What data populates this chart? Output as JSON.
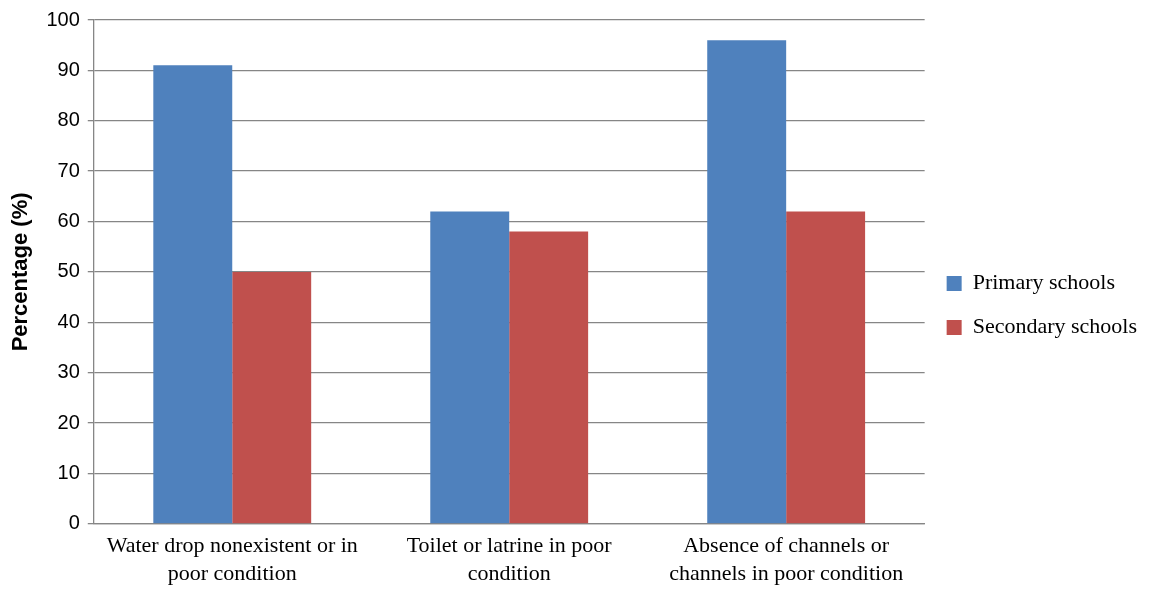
{
  "chart_data": {
    "type": "bar",
    "ylabel": "Percentage (%)",
    "categories": [
      "Water drop nonexistent or in poor condition",
      "Toilet or latrine in poor condition",
      "Absence of channels or channels in poor condition"
    ],
    "series": [
      {
        "name": "Primary schools",
        "color": "#4f81bd",
        "values": [
          91,
          62,
          96
        ]
      },
      {
        "name": "Secondary schools",
        "color": "#c0504d",
        "values": [
          50,
          58,
          62
        ]
      }
    ],
    "ylim": [
      0,
      100
    ],
    "yticks": [
      0,
      10,
      20,
      30,
      40,
      50,
      60,
      70,
      80,
      90,
      100
    ],
    "grid": "y",
    "legend": "right"
  }
}
